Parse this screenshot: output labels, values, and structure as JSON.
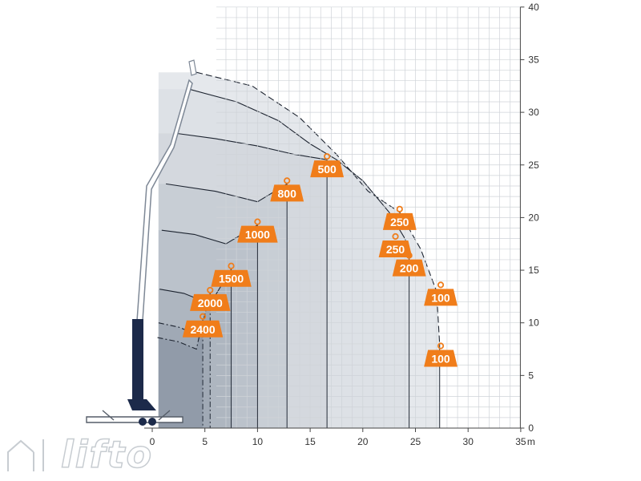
{
  "chart_data": {
    "type": "area",
    "title": "",
    "xlabel": "",
    "ylabel": "",
    "x_unit": "m",
    "xlim": [
      -3,
      35
    ],
    "ylim": [
      0,
      40
    ],
    "x_ticks": [
      0,
      5,
      10,
      15,
      20,
      25,
      30,
      35
    ],
    "y_ticks": [
      0,
      5,
      10,
      15,
      20,
      25,
      30,
      35,
      40
    ],
    "grid": true,
    "zones": [
      {
        "name": "",
        "label": "100",
        "style": "dashed",
        "points": [
          [
            4.2,
            33.8
          ],
          [
            9.5,
            32.5
          ],
          [
            14,
            29.5
          ],
          [
            17.5,
            26
          ],
          [
            20.5,
            22.5
          ],
          [
            23.5,
            20.5
          ],
          [
            25.5,
            17
          ],
          [
            27,
            13
          ],
          [
            27.3,
            8
          ],
          [
            27.3,
            0
          ]
        ]
      },
      {
        "name": "",
        "label": "250",
        "style": "solid",
        "points": [
          [
            3.5,
            32.2
          ],
          [
            8,
            31
          ],
          [
            12,
            29.2
          ],
          [
            15,
            27
          ],
          [
            17.5,
            25.5
          ],
          [
            20,
            23.5
          ],
          [
            22.5,
            20.5
          ],
          [
            24,
            18
          ],
          [
            24.4,
            16.5
          ],
          [
            24.4,
            0
          ]
        ]
      },
      {
        "name": "",
        "label": "500",
        "style": "solid",
        "points": [
          [
            2.3,
            28
          ],
          [
            6,
            27.5
          ],
          [
            10,
            26.8
          ],
          [
            13.5,
            26
          ],
          [
            16.6,
            25.5
          ],
          [
            16.6,
            0
          ]
        ]
      },
      {
        "name": "",
        "label": "800",
        "style": "solid",
        "points": [
          [
            1.3,
            23.2
          ],
          [
            6,
            22.5
          ],
          [
            10,
            21.5
          ],
          [
            12.8,
            23.2
          ],
          [
            12.8,
            0
          ]
        ]
      },
      {
        "name": "",
        "label": "1000",
        "style": "solid",
        "points": [
          [
            0.9,
            18.8
          ],
          [
            4,
            18.4
          ],
          [
            7,
            17.5
          ],
          [
            10,
            19.3
          ],
          [
            10,
            0
          ]
        ]
      },
      {
        "name": "",
        "label": "1500",
        "style": "solid",
        "points": [
          [
            0.7,
            13.2
          ],
          [
            3,
            12.8
          ],
          [
            5.5,
            11.8
          ],
          [
            7.5,
            15.1
          ],
          [
            7.5,
            0
          ]
        ]
      },
      {
        "name": "",
        "label": "2000",
        "style": "dashdot",
        "points": [
          [
            0.6,
            10
          ],
          [
            2.5,
            9.6
          ],
          [
            4.5,
            8.8
          ],
          [
            5.5,
            12.8
          ],
          [
            5.5,
            0
          ]
        ]
      },
      {
        "name": "",
        "label": "2400",
        "style": "dashdot",
        "points": [
          [
            0.5,
            8.6
          ],
          [
            2.5,
            8.2
          ],
          [
            4.2,
            7.5
          ],
          [
            4.8,
            10.3
          ],
          [
            4.8,
            0
          ]
        ]
      }
    ],
    "load_labels": [
      {
        "label": "500",
        "x": 16.6,
        "y": 25.5
      },
      {
        "label": "800",
        "x": 12.8,
        "y": 23.2
      },
      {
        "label": "1000",
        "x": 10.0,
        "y": 19.3
      },
      {
        "label": "1500",
        "x": 7.5,
        "y": 15.1
      },
      {
        "label": "2000",
        "x": 5.5,
        "y": 12.8
      },
      {
        "label": "2400",
        "x": 4.8,
        "y": 10.3
      },
      {
        "label": "250",
        "x": 23.5,
        "y": 20.5
      },
      {
        "label": "250",
        "x": 23.1,
        "y": 17.9
      },
      {
        "label": "200",
        "x": 24.4,
        "y": 16.1
      },
      {
        "label": "100",
        "x": 27.4,
        "y": 13.3
      },
      {
        "label": "100",
        "x": 27.4,
        "y": 7.5
      }
    ],
    "colors": {
      "badge": "#f07d1a",
      "grid": "#cfd3d8",
      "boom": "#1c2a4a",
      "zone_light": "#e3e6ea",
      "zone_dark": "#7f8a97"
    }
  },
  "brand": {
    "name": "lifto"
  }
}
